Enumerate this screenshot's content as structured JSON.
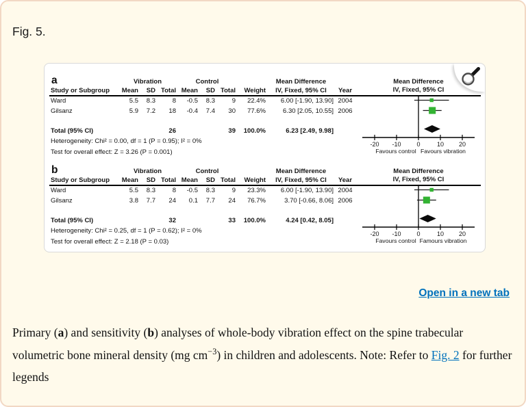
{
  "page": {
    "figure_label": "Fig. 5.",
    "open_in_new_tab": "Open in a new tab"
  },
  "colors": {
    "page_background": "#fffaeb",
    "card_border": "#f2d8c4",
    "marker_green": "#33b333",
    "diamond_black": "#0a0a0a",
    "link_blue": "#0071bc"
  },
  "caption": {
    "p1": "Primary (",
    "b1": "a",
    "p2": ") and sensitivity (",
    "b2": "b",
    "p3": ") analyses of whole-body vibration effect on the spine trabecular volumetric bone mineral density (mg cm",
    "sup": "−3",
    "p4": ") in children and adolescents. Note: Refer to ",
    "link": "Fig. 2",
    "p5": " for further legends"
  },
  "chart_data": [
    {
      "type": "forest",
      "panel_label": "a",
      "group_headers": {
        "treatment": "Vibration",
        "control": "Control",
        "mean_difference": "Mean Difference"
      },
      "columns": [
        "Study or Subgroup",
        "Mean",
        "SD",
        "Total",
        "Mean",
        "SD",
        "Total",
        "Weight",
        "IV, Fixed, 95% CI",
        "Year"
      ],
      "plot_header": [
        "Mean Difference",
        "IV, Fixed, 95% CI"
      ],
      "studies": [
        {
          "name": "Ward",
          "cells": [
            "5.5",
            "8.3",
            "8",
            "-0.5",
            "8.3",
            "9",
            "22.4%",
            "6.00 [-1.90, 13.90]",
            "2004"
          ],
          "est": 6.0,
          "lo": -1.9,
          "hi": 13.9,
          "weight_pct": 22.4
        },
        {
          "name": "Gilsanz",
          "cells": [
            "5.9",
            "7.2",
            "18",
            "-0.4",
            "7.4",
            "30",
            "77.6%",
            "6.30 [2.05, 10.55]",
            "2006"
          ],
          "est": 6.3,
          "lo": 2.05,
          "hi": 10.55,
          "weight_pct": 77.6
        }
      ],
      "total": {
        "label": "Total (95% CI)",
        "treat_total": "26",
        "ctrl_total": "39",
        "weight": "100.0%",
        "ci": "6.23 [2.49, 9.98]",
        "est": 6.23,
        "lo": 2.49,
        "hi": 9.98
      },
      "heterogeneity": "Heterogeneity: Chi² = 0.00, df = 1 (P = 0.95); I² = 0%",
      "overall_effect": "Test for overall effect: Z = 3.26 (P = 0.001)",
      "axis": {
        "ticks": [
          -20,
          -10,
          0,
          10,
          20
        ],
        "xlim": [
          -25,
          25
        ],
        "favours_left": "Favours control",
        "favours_right": "Favours vibration"
      }
    },
    {
      "type": "forest",
      "panel_label": "b",
      "group_headers": {
        "treatment": "Vibration",
        "control": "Control",
        "mean_difference": "Mean Difference"
      },
      "columns": [
        "Study or Subgroup",
        "Mean",
        "SD",
        "Total",
        "Mean",
        "SD",
        "Total",
        "Weight",
        "IV, Fixed, 95% CI",
        "Year"
      ],
      "plot_header": [
        "Mean Difference",
        "IV, Fixed, 95% CI"
      ],
      "studies": [
        {
          "name": "Ward",
          "cells": [
            "5.5",
            "8.3",
            "8",
            "-0.5",
            "8.3",
            "9",
            "23.3%",
            "6.00 [-1.90, 13.90]",
            "2004"
          ],
          "est": 6.0,
          "lo": -1.9,
          "hi": 13.9,
          "weight_pct": 23.3
        },
        {
          "name": "Gilsanz",
          "cells": [
            "3.8",
            "7.7",
            "24",
            "0.1",
            "7.7",
            "24",
            "76.7%",
            "3.70 [-0.66, 8.06]",
            "2006"
          ],
          "est": 3.7,
          "lo": -0.66,
          "hi": 8.06,
          "weight_pct": 76.7
        }
      ],
      "total": {
        "label": "Total (95% CI)",
        "treat_total": "32",
        "ctrl_total": "33",
        "weight": "100.0%",
        "ci": "4.24 [0.42, 8.05]",
        "est": 4.24,
        "lo": 0.42,
        "hi": 8.05
      },
      "heterogeneity": "Heterogeneity: Chi² = 0.25, df = 1 (P = 0.62); I² = 0%",
      "overall_effect": "Test for overall effect: Z = 2.18 (P = 0.03)",
      "axis": {
        "ticks": [
          -20,
          -10,
          0,
          10,
          20
        ],
        "xlim": [
          -25,
          25
        ],
        "favours_left": "Favours control",
        "favours_right": "Famours vibration"
      }
    }
  ]
}
